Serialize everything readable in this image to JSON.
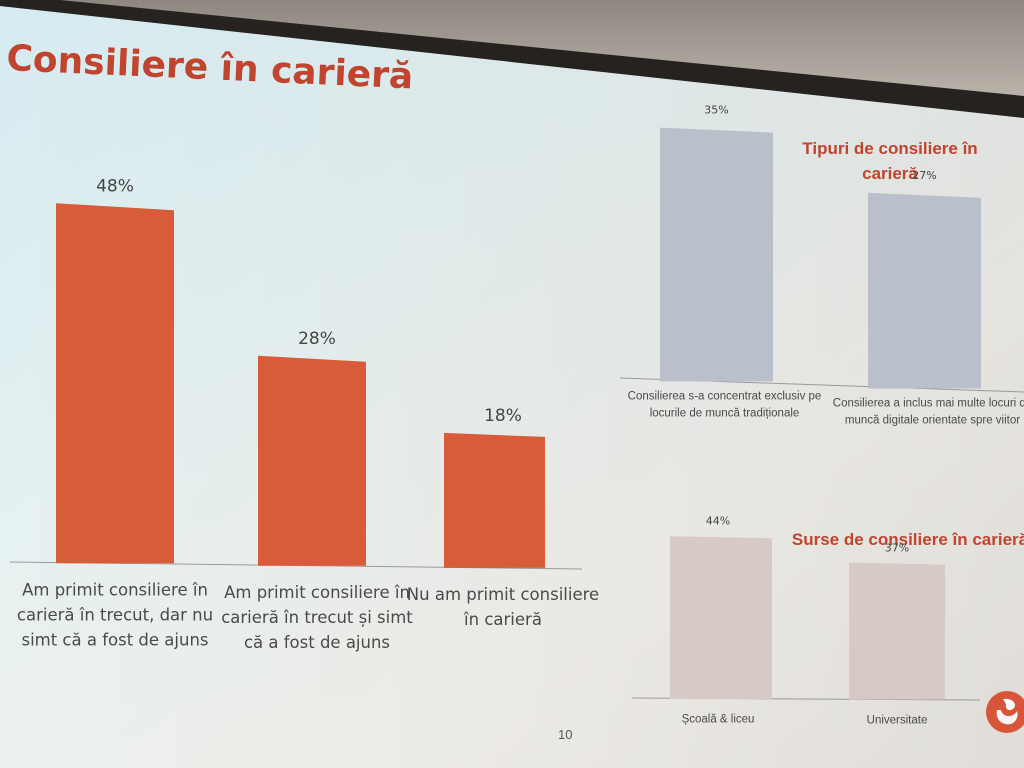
{
  "slide": {
    "title": "Consiliere în carieră",
    "page_number": "10"
  },
  "chart_data": [
    {
      "type": "bar",
      "title": "",
      "categories": [
        "Am primit consiliere în carieră în trecut, dar nu simt că a fost de ajuns",
        "Am primit consiliere în carieră în trecut și simt că a fost de ajuns",
        "Nu am primit consiliere în carieră"
      ],
      "category_lines": [
        [
          "Am primit consiliere în",
          "carieră în trecut, dar nu",
          "simt că a fost de ajuns"
        ],
        [
          "Am primit consiliere în",
          "carieră în trecut și simt",
          "că a fost de ajuns"
        ],
        [
          "Nu am primit consiliere",
          "în carieră"
        ]
      ],
      "values": [
        48,
        28,
        18
      ],
      "value_labels": [
        "48%",
        "28%",
        "18%"
      ],
      "unit": "%",
      "ylim": [
        0,
        50
      ],
      "color": "#d85c3a"
    },
    {
      "type": "bar",
      "title": "Tipuri de consiliere în carieră",
      "title_lines": [
        "Tipuri de consiliere în",
        "carieră"
      ],
      "categories": [
        "Consilierea s-a concentrat exclusiv pe locurile de muncă tradiționale",
        "Consilierea a inclus mai multe locuri de muncă digitale orientate spre viitor"
      ],
      "category_lines": [
        [
          "Consilierea s-a concentrat exclusiv pe",
          "locurile de muncă tradiționale"
        ],
        [
          "Consilierea a inclus mai multe locuri de",
          "muncă digitale orientate spre viitor"
        ]
      ],
      "values": [
        35,
        27
      ],
      "value_labels": [
        "35%",
        "27%"
      ],
      "unit": "%",
      "ylim": [
        0,
        40
      ],
      "color": "#b9c0cb"
    },
    {
      "type": "bar",
      "title": "Surse de consiliere în carieră",
      "categories": [
        "Școală & liceu",
        "Universitate"
      ],
      "values": [
        44,
        37
      ],
      "value_labels": [
        "44%",
        "37%"
      ],
      "unit": "%",
      "ylim": [
        0,
        50
      ],
      "color": "#d7c9c6"
    }
  ],
  "colors": {
    "accent": "#c0442e",
    "main_bar": "#d85c3a",
    "types_bar": "#b9c0cb",
    "sources_bar": "#d7c9c6"
  },
  "logo": {
    "icon": "vodafone-logo-icon"
  }
}
